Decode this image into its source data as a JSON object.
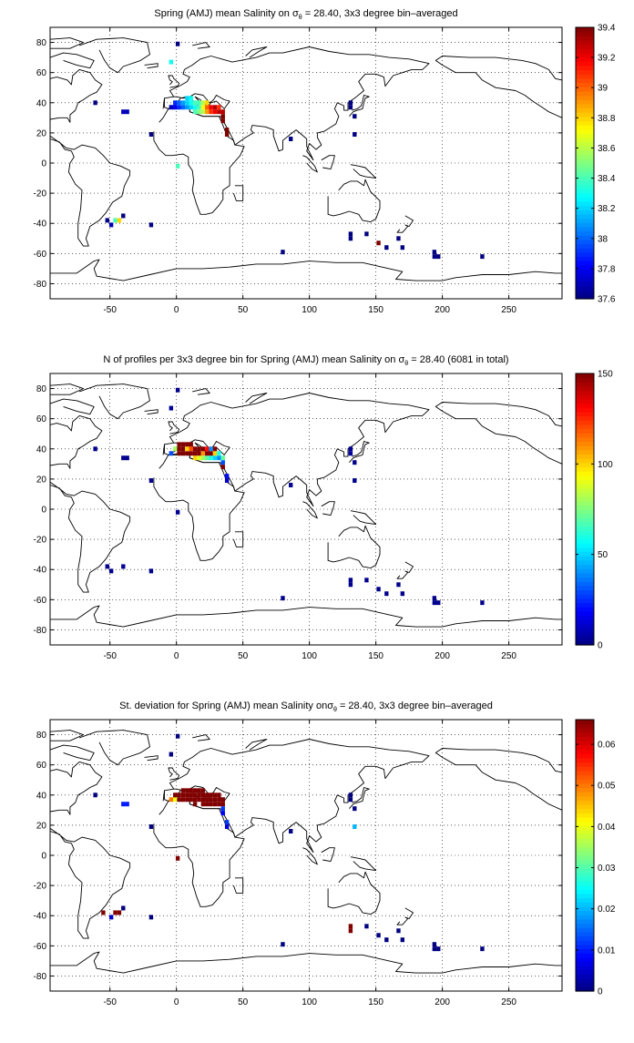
{
  "chart_data": [
    {
      "type": "heatmap",
      "title_lead": "Spring (AMJ) mean Salinity on ",
      "title_sigma": "σ",
      "title_sub": "θ",
      "title_tail": " = 28.40, 3x3 degree bin–averaged",
      "xlim": [
        -95,
        290
      ],
      "ylim": [
        -90,
        90
      ],
      "xticks": [
        -50,
        0,
        50,
        100,
        150,
        200,
        250
      ],
      "yticks": [
        -80,
        -60,
        -40,
        -20,
        0,
        20,
        40,
        60,
        80
      ],
      "grid": true,
      "colormap": "jet",
      "colorbar_location": "right",
      "clim": [
        37.6,
        39.4
      ],
      "colorbar_ticks": [
        37.6,
        37.8,
        38,
        38.2,
        38.4,
        38.6,
        38.8,
        39,
        39.2,
        39.4
      ],
      "cells": [
        [
          1,
          79,
          37.6
        ],
        [
          -4,
          67,
          38.3
        ],
        [
          -61,
          40,
          37.6
        ],
        [
          -40,
          34,
          37.7
        ],
        [
          -37,
          34,
          37.7
        ],
        [
          -4,
          37,
          37.7
        ],
        [
          -1,
          37,
          37.8
        ],
        [
          -1,
          40,
          37.9
        ],
        [
          2,
          37,
          37.9
        ],
        [
          2,
          40,
          38.0
        ],
        [
          5,
          37,
          38.0
        ],
        [
          5,
          40,
          38.1
        ],
        [
          8,
          37,
          38.1
        ],
        [
          8,
          40,
          38.2
        ],
        [
          8,
          43,
          38.2
        ],
        [
          11,
          37,
          38.2
        ],
        [
          11,
          40,
          38.3
        ],
        [
          11,
          43,
          38.3
        ],
        [
          14,
          34,
          38.4
        ],
        [
          14,
          37,
          38.3
        ],
        [
          14,
          40,
          38.4
        ],
        [
          17,
          34,
          38.5
        ],
        [
          17,
          37,
          38.4
        ],
        [
          17,
          40,
          38.4
        ],
        [
          20,
          34,
          38.6
        ],
        [
          20,
          37,
          38.7
        ],
        [
          20,
          40,
          38.6
        ],
        [
          23,
          34,
          38.9
        ],
        [
          23,
          37,
          39.0
        ],
        [
          23,
          40,
          38.8
        ],
        [
          26,
          34,
          39.1
        ],
        [
          26,
          37,
          39.2
        ],
        [
          29,
          34,
          39.2
        ],
        [
          29,
          37,
          39.3
        ],
        [
          32,
          34,
          39.3
        ],
        [
          32,
          37,
          39.1
        ],
        [
          35,
          31,
          39.4
        ],
        [
          35,
          34,
          39.3
        ],
        [
          35,
          28,
          39.4
        ],
        [
          38,
          22,
          39.4
        ],
        [
          38,
          19,
          39.4
        ],
        [
          -19,
          19,
          37.6
        ],
        [
          1,
          -2,
          38.4
        ],
        [
          86,
          16,
          37.6
        ],
        [
          131,
          40,
          37.6
        ],
        [
          131,
          37,
          37.6
        ],
        [
          134,
          31,
          37.6
        ],
        [
          134,
          19,
          37.6
        ],
        [
          -52,
          -38,
          37.6
        ],
        [
          -49,
          -41,
          37.7
        ],
        [
          -46,
          -38,
          38.4
        ],
        [
          -43,
          -38,
          38.8
        ],
        [
          -40,
          -35,
          37.6
        ],
        [
          -19,
          -41,
          37.6
        ],
        [
          131,
          -47,
          37.6
        ],
        [
          131,
          -50,
          37.6
        ],
        [
          143,
          -47,
          37.6
        ],
        [
          152,
          -53,
          39.4
        ],
        [
          158,
          -56,
          37.6
        ],
        [
          167,
          -50,
          37.6
        ],
        [
          170,
          -56,
          37.6
        ],
        [
          194,
          -59,
          37.6
        ],
        [
          194,
          -62,
          37.6
        ],
        [
          197,
          -62,
          37.6
        ],
        [
          230,
          -62,
          37.6
        ],
        [
          80,
          -59,
          37.6
        ]
      ]
    },
    {
      "type": "heatmap",
      "title_lead": "N of profiles per 3x3 degree bin for Spring (AMJ) mean Salinity on ",
      "title_sigma": "σ",
      "title_sub": "θ",
      "title_tail": " = 28.40 (6081 in total)",
      "xlim": [
        -95,
        290
      ],
      "ylim": [
        -90,
        90
      ],
      "xticks": [
        -50,
        0,
        50,
        100,
        150,
        200,
        250
      ],
      "yticks": [
        -80,
        -60,
        -40,
        -20,
        0,
        20,
        40,
        60,
        80
      ],
      "grid": true,
      "colormap": "jet",
      "colorbar_location": "right",
      "clim": [
        0,
        150
      ],
      "colorbar_ticks": [
        0,
        50,
        100,
        150
      ],
      "cells": [
        [
          1,
          79,
          2
        ],
        [
          -4,
          67,
          3
        ],
        [
          -61,
          40,
          2
        ],
        [
          -40,
          34,
          2
        ],
        [
          -37,
          34,
          2
        ],
        [
          -4,
          37,
          30
        ],
        [
          -1,
          40,
          80
        ],
        [
          2,
          37,
          150
        ],
        [
          2,
          40,
          150
        ],
        [
          2,
          43,
          150
        ],
        [
          5,
          37,
          150
        ],
        [
          5,
          40,
          150
        ],
        [
          5,
          43,
          150
        ],
        [
          8,
          37,
          150
        ],
        [
          8,
          40,
          100
        ],
        [
          8,
          43,
          150
        ],
        [
          11,
          37,
          150
        ],
        [
          11,
          40,
          120
        ],
        [
          11,
          43,
          150
        ],
        [
          14,
          34,
          100
        ],
        [
          14,
          37,
          150
        ],
        [
          14,
          40,
          150
        ],
        [
          17,
          34,
          90
        ],
        [
          17,
          37,
          150
        ],
        [
          17,
          40,
          150
        ],
        [
          20,
          34,
          80
        ],
        [
          20,
          37,
          110
        ],
        [
          20,
          40,
          150
        ],
        [
          23,
          34,
          70
        ],
        [
          23,
          37,
          150
        ],
        [
          23,
          40,
          130
        ],
        [
          26,
          34,
          60
        ],
        [
          26,
          37,
          150
        ],
        [
          26,
          40,
          40
        ],
        [
          29,
          34,
          50
        ],
        [
          29,
          37,
          100
        ],
        [
          29,
          40,
          150
        ],
        [
          32,
          34,
          40
        ],
        [
          32,
          37,
          60
        ],
        [
          35,
          31,
          30
        ],
        [
          35,
          34,
          70
        ],
        [
          35,
          28,
          150
        ],
        [
          38,
          22,
          20
        ],
        [
          38,
          19,
          10
        ],
        [
          -19,
          19,
          2
        ],
        [
          1,
          -2,
          3
        ],
        [
          86,
          16,
          2
        ],
        [
          131,
          40,
          3
        ],
        [
          131,
          37,
          5
        ],
        [
          134,
          31,
          2
        ],
        [
          134,
          19,
          2
        ],
        [
          -52,
          -38,
          2
        ],
        [
          -49,
          -41,
          2
        ],
        [
          -40,
          -38,
          4
        ],
        [
          -19,
          -41,
          2
        ],
        [
          131,
          -47,
          2
        ],
        [
          131,
          -50,
          2
        ],
        [
          143,
          -47,
          2
        ],
        [
          152,
          -53,
          2
        ],
        [
          158,
          -56,
          2
        ],
        [
          167,
          -50,
          2
        ],
        [
          170,
          -56,
          2
        ],
        [
          194,
          -59,
          2
        ],
        [
          194,
          -62,
          2
        ],
        [
          197,
          -62,
          2
        ],
        [
          230,
          -62,
          2
        ],
        [
          80,
          -59,
          2
        ]
      ]
    },
    {
      "type": "heatmap",
      "title_lead": "St. deviation for Spring (AMJ) mean Salinity on",
      "title_sigma": "σ",
      "title_sub": "θ",
      "title_tail": " = 28.40, 3x3 degree bin–averaged",
      "xlim": [
        -95,
        290
      ],
      "ylim": [
        -90,
        90
      ],
      "xticks": [
        -50,
        0,
        50,
        100,
        150,
        200,
        250
      ],
      "yticks": [
        -80,
        -60,
        -40,
        -20,
        0,
        20,
        40,
        60,
        80
      ],
      "grid": true,
      "colormap": "jet",
      "colorbar_location": "right",
      "clim": [
        0,
        0.066
      ],
      "colorbar_ticks": [
        0,
        0.01,
        0.02,
        0.03,
        0.04,
        0.05,
        0.06
      ],
      "cells": [
        [
          1,
          79,
          0
        ],
        [
          -4,
          67,
          0
        ],
        [
          -61,
          40,
          0
        ],
        [
          -40,
          34,
          0.01
        ],
        [
          -37,
          34,
          0.01
        ],
        [
          -4,
          37,
          0.05
        ],
        [
          -1,
          37,
          0.04
        ],
        [
          -1,
          40,
          0.066
        ],
        [
          2,
          37,
          0.066
        ],
        [
          2,
          40,
          0.066
        ],
        [
          5,
          37,
          0.066
        ],
        [
          5,
          40,
          0.066
        ],
        [
          5,
          43,
          0.066
        ],
        [
          8,
          37,
          0.066
        ],
        [
          8,
          40,
          0.066
        ],
        [
          8,
          43,
          0.066
        ],
        [
          11,
          37,
          0.066
        ],
        [
          11,
          40,
          0.066
        ],
        [
          11,
          43,
          0.066
        ],
        [
          14,
          34,
          0.066
        ],
        [
          14,
          37,
          0.066
        ],
        [
          14,
          40,
          0.066
        ],
        [
          14,
          43,
          0.066
        ],
        [
          17,
          37,
          0.066
        ],
        [
          17,
          40,
          0.066
        ],
        [
          17,
          43,
          0.066
        ],
        [
          20,
          34,
          0.066
        ],
        [
          20,
          37,
          0.066
        ],
        [
          20,
          40,
          0.066
        ],
        [
          20,
          43,
          0.066
        ],
        [
          23,
          34,
          0.066
        ],
        [
          23,
          37,
          0.066
        ],
        [
          23,
          40,
          0.066
        ],
        [
          26,
          34,
          0.066
        ],
        [
          26,
          37,
          0.066
        ],
        [
          26,
          40,
          0.066
        ],
        [
          29,
          34,
          0.066
        ],
        [
          29,
          37,
          0.066
        ],
        [
          29,
          40,
          0.066
        ],
        [
          32,
          34,
          0.066
        ],
        [
          32,
          37,
          0.066
        ],
        [
          32,
          40,
          0.066
        ],
        [
          35,
          34,
          0.066
        ],
        [
          35,
          37,
          0.066
        ],
        [
          35,
          31,
          0.012
        ],
        [
          35,
          28,
          0.008
        ],
        [
          38,
          22,
          0.012
        ],
        [
          38,
          19,
          0.006
        ],
        [
          -19,
          19,
          0
        ],
        [
          1,
          -2,
          0.066
        ],
        [
          86,
          16,
          0
        ],
        [
          131,
          40,
          0
        ],
        [
          131,
          37,
          0
        ],
        [
          134,
          31,
          0
        ],
        [
          134,
          19,
          0.02
        ],
        [
          -55,
          -38,
          0.066
        ],
        [
          -49,
          -41,
          0.005
        ],
        [
          -46,
          -38,
          0.066
        ],
        [
          -43,
          -38,
          0.066
        ],
        [
          -40,
          -35,
          0
        ],
        [
          -19,
          -41,
          0
        ],
        [
          131,
          -47,
          0.066
        ],
        [
          131,
          -50,
          0.066
        ],
        [
          143,
          -47,
          0
        ],
        [
          152,
          -53,
          0
        ],
        [
          158,
          -56,
          0
        ],
        [
          167,
          -50,
          0
        ],
        [
          170,
          -56,
          0
        ],
        [
          194,
          -59,
          0
        ],
        [
          194,
          -62,
          0
        ],
        [
          197,
          -62,
          0
        ],
        [
          230,
          -62,
          0
        ],
        [
          80,
          -59,
          0
        ]
      ]
    }
  ]
}
